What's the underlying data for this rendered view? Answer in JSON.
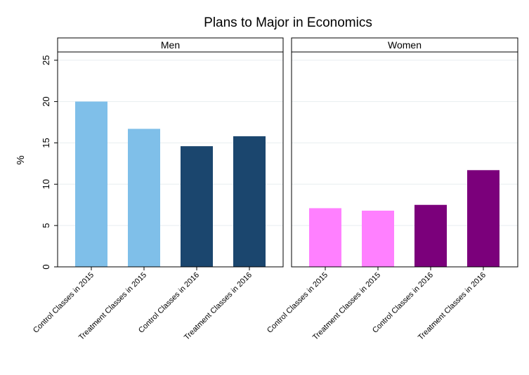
{
  "chart_data": {
    "type": "bar",
    "title": "Plans to Major in Economics",
    "ylabel": "%",
    "ylim": [
      0,
      26
    ],
    "yticks": [
      0,
      5,
      10,
      15,
      20,
      25
    ],
    "grid": true,
    "categories": [
      "Control Classes in 2015",
      "Treatment Classes in 2015",
      "Control Classes in 2016",
      "Treatment Classes in 2016"
    ],
    "panels": [
      {
        "label": "Men",
        "values": [
          20.0,
          16.7,
          14.6,
          15.8
        ],
        "colors": [
          "#7fbfe9",
          "#7fbfe9",
          "#1b466e",
          "#1b466e"
        ]
      },
      {
        "label": "Women",
        "values": [
          7.1,
          6.8,
          7.5,
          11.7
        ],
        "colors": [
          "#ff80ff",
          "#ff80ff",
          "#7b007b",
          "#7b007b"
        ]
      }
    ]
  }
}
